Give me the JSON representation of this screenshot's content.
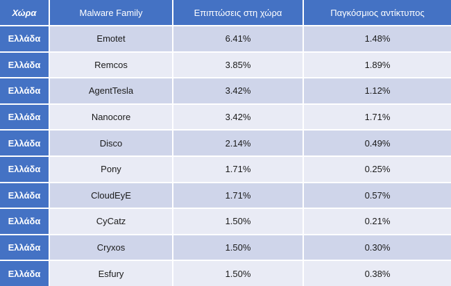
{
  "table": {
    "headers": [
      "Χώρα",
      "Malware Family",
      "Επιπτώσεις στη χώρα",
      "Παγκόσμιος αντίκτυπος"
    ],
    "rows": [
      {
        "country": "Ελλάδα",
        "family": "Emotet",
        "local": "6.41%",
        "global": "1.48%"
      },
      {
        "country": "Ελλάδα",
        "family": "Remcos",
        "local": "3.85%",
        "global": "1.89%"
      },
      {
        "country": "Ελλάδα",
        "family": "AgentTesla",
        "local": "3.42%",
        "global": "1.12%"
      },
      {
        "country": "Ελλάδα",
        "family": "Nanocore",
        "local": "3.42%",
        "global": "1.71%"
      },
      {
        "country": "Ελλάδα",
        "family": "Disco",
        "local": "2.14%",
        "global": "0.49%"
      },
      {
        "country": "Ελλάδα",
        "family": "Pony",
        "local": "1.71%",
        "global": "0.25%"
      },
      {
        "country": "Ελλάδα",
        "family": "CloudEyE",
        "local": "1.71%",
        "global": "0.57%"
      },
      {
        "country": "Ελλάδα",
        "family": "CyCatz",
        "local": "1.50%",
        "global": "0.21%"
      },
      {
        "country": "Ελλάδα",
        "family": "Cryxos",
        "local": "1.50%",
        "global": "0.30%"
      },
      {
        "country": "Ελλάδα",
        "family": "Esfury",
        "local": "1.50%",
        "global": "0.38%"
      }
    ]
  },
  "colors": {
    "header_bg": "#4472c4",
    "row_odd": "#cfd5ea",
    "row_even": "#e9ebf5"
  }
}
